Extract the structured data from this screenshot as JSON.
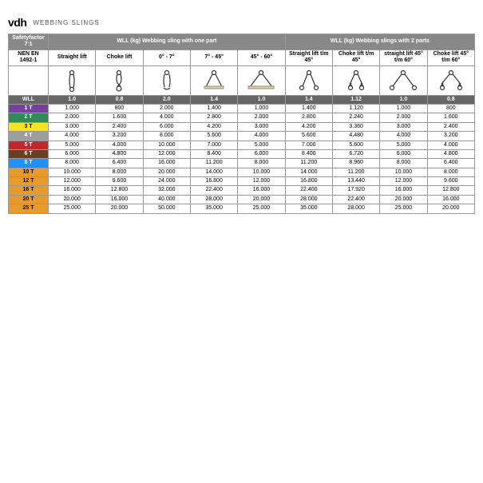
{
  "brand": "vdh",
  "title": "WEBBING SLINGS",
  "header": {
    "safety": "Safetyfactor 7:1",
    "group1": "WLL (kg) Webbing sling with one part",
    "group2": "WLL (kg) Webbing slings with 2 parts",
    "norm": "NEN EN 1492-1",
    "cols": [
      "Straight lift",
      "Choke lift",
      "0° - 7°",
      "7° - 45°",
      "45° - 60°",
      "Straight lift t/m 45°",
      "Choke lift t/m 45°",
      "straight lift 45° t/m 60°",
      "Choke lift 45° t/m 60°"
    ]
  },
  "wll_factors": [
    "1.0",
    "0.8",
    "2.0",
    "1.4",
    "1.0",
    "1.4",
    "1.12",
    "1.0",
    "0.8"
  ],
  "wll_label": "WLL",
  "rows": [
    {
      "label": "1 T",
      "color": "#7a3fa3",
      "text": "#fff",
      "v": [
        "1.000",
        "800",
        "2.000",
        "1.400",
        "1.000",
        "1.400",
        "1.120",
        "1.000",
        "800"
      ]
    },
    {
      "label": "2 T",
      "color": "#2e8b57",
      "text": "#fff",
      "v": [
        "2.000",
        "1.600",
        "4.000",
        "2.800",
        "2.000",
        "2.800",
        "2.240",
        "2.000",
        "1.600"
      ]
    },
    {
      "label": "3 T",
      "color": "#f6e421",
      "text": "#000",
      "v": [
        "3.000",
        "2.400",
        "6.000",
        "4.200",
        "3.000",
        "4.200",
        "3.360",
        "3.000",
        "2.400"
      ]
    },
    {
      "label": "4 T",
      "color": "#9e9e9e",
      "text": "#fff",
      "v": [
        "4.000",
        "3.200",
        "8.000",
        "5.600",
        "4.000",
        "5.600",
        "4.480",
        "4.000",
        "3.200"
      ]
    },
    {
      "label": "5 T",
      "color": "#c1272d",
      "text": "#fff",
      "v": [
        "5.000",
        "4.000",
        "10.000",
        "7.000",
        "5.000",
        "7.000",
        "5.600",
        "5.000",
        "4.000"
      ]
    },
    {
      "label": "6 T",
      "color": "#6b3f24",
      "text": "#fff",
      "v": [
        "6.000",
        "4.800",
        "12.000",
        "8.400",
        "6.000",
        "8.400",
        "6.720",
        "6.000",
        "4.800"
      ]
    },
    {
      "label": "8 T",
      "color": "#1e90ff",
      "text": "#fff",
      "v": [
        "8.000",
        "6.400",
        "16.000",
        "11.200",
        "8.000",
        "11.200",
        "8.960",
        "8.000",
        "6.400"
      ]
    },
    {
      "label": "10 T",
      "color": "#e89a2b",
      "text": "#000",
      "v": [
        "10.000",
        "8.000",
        "20.000",
        "14.000",
        "10.000",
        "14.000",
        "11.200",
        "10.000",
        "8.000"
      ]
    },
    {
      "label": "12 T",
      "color": "#e89a2b",
      "text": "#000",
      "v": [
        "12.000",
        "9.600",
        "24.000",
        "16.800",
        "12.000",
        "16.800",
        "13.440",
        "12.000",
        "9.600"
      ]
    },
    {
      "label": "16 T",
      "color": "#e89a2b",
      "text": "#000",
      "v": [
        "16.000",
        "12.800",
        "32.000",
        "22.400",
        "16.000",
        "22.400",
        "17.920",
        "16.000",
        "12.800"
      ]
    },
    {
      "label": "20 T",
      "color": "#e89a2b",
      "text": "#000",
      "v": [
        "20.000",
        "16.000",
        "40.000",
        "28.000",
        "20.000",
        "28.000",
        "22.400",
        "20.000",
        "16.000"
      ]
    },
    {
      "label": "25 T",
      "color": "#e89a2b",
      "text": "#000",
      "v": [
        "25.000",
        "20.000",
        "50.000",
        "35.000",
        "25.000",
        "35.000",
        "28.000",
        "25.000",
        "20.000"
      ]
    }
  ],
  "svg": {
    "stroke": "#333",
    "sw": 1.2
  }
}
